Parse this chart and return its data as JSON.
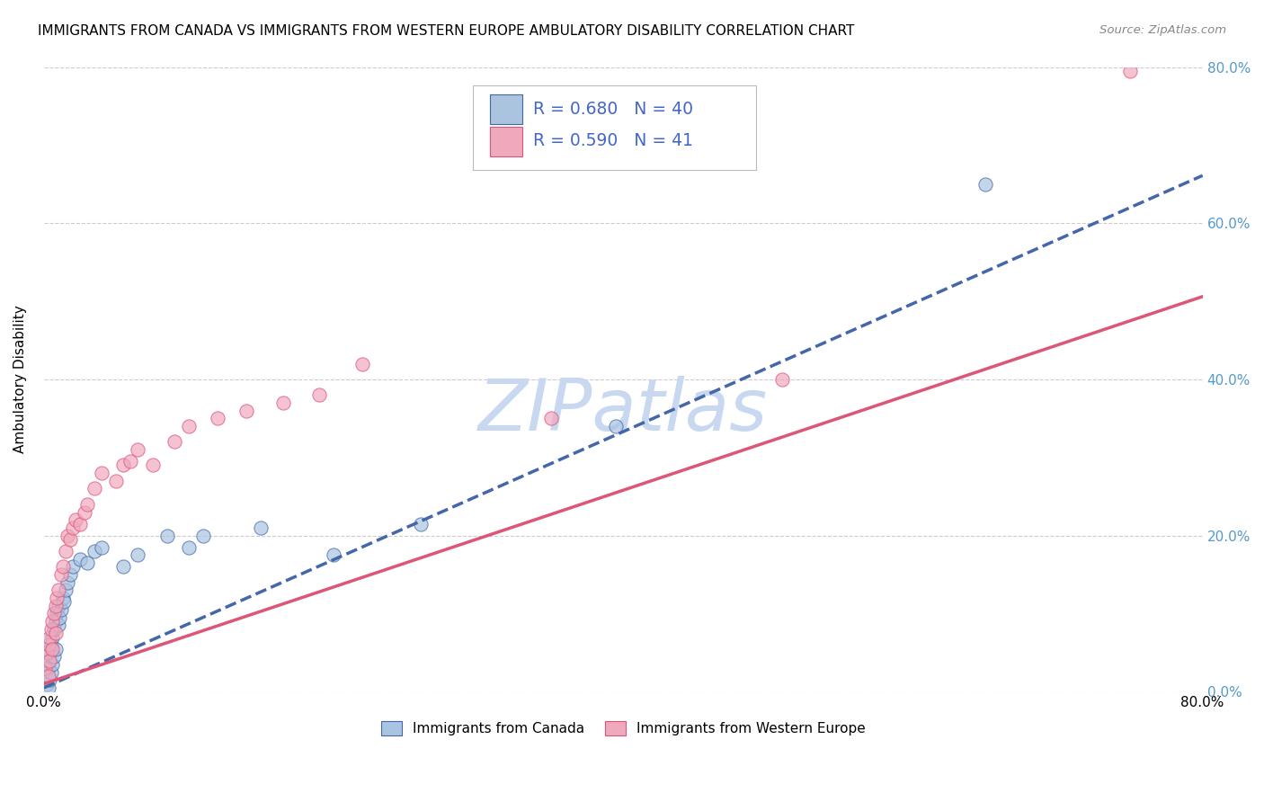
{
  "title": "IMMIGRANTS FROM CANADA VS IMMIGRANTS FROM WESTERN EUROPE AMBULATORY DISABILITY CORRELATION CHART",
  "source": "Source: ZipAtlas.com",
  "ylabel": "Ambulatory Disability",
  "color_canada": "#aac4e0",
  "color_europe": "#f0a8bc",
  "color_canada_line": "#4466aa",
  "color_europe_line": "#dd5577",
  "color_axis_right": "#5599cc",
  "color_legend_text": "#4466cc",
  "watermark": "ZIPatlas",
  "watermark_color": "#c8d8f0",
  "xlim": [
    0.0,
    0.8
  ],
  "ylim": [
    0.0,
    0.8
  ],
  "ytick_labels": [
    "0.0%",
    "20.0%",
    "40.0%",
    "60.0%",
    "80.0%"
  ],
  "ytick_values": [
    0.0,
    0.2,
    0.4,
    0.6,
    0.8
  ],
  "canada_slope": 0.82,
  "canada_intercept": 0.005,
  "europe_slope": 0.62,
  "europe_intercept": 0.01,
  "canada_x": [
    0.001,
    0.002,
    0.002,
    0.003,
    0.003,
    0.004,
    0.004,
    0.005,
    0.005,
    0.006,
    0.006,
    0.007,
    0.007,
    0.008,
    0.008,
    0.009,
    0.01,
    0.01,
    0.011,
    0.012,
    0.013,
    0.014,
    0.015,
    0.016,
    0.018,
    0.02,
    0.025,
    0.03,
    0.035,
    0.04,
    0.055,
    0.065,
    0.085,
    0.1,
    0.11,
    0.15,
    0.2,
    0.26,
    0.395,
    0.65
  ],
  "canada_y": [
    0.02,
    0.01,
    0.04,
    0.005,
    0.03,
    0.05,
    0.015,
    0.06,
    0.025,
    0.07,
    0.035,
    0.08,
    0.045,
    0.09,
    0.055,
    0.1,
    0.085,
    0.11,
    0.095,
    0.105,
    0.12,
    0.115,
    0.13,
    0.14,
    0.15,
    0.16,
    0.17,
    0.165,
    0.18,
    0.185,
    0.16,
    0.175,
    0.2,
    0.185,
    0.2,
    0.21,
    0.175,
    0.215,
    0.34,
    0.65
  ],
  "europe_x": [
    0.001,
    0.002,
    0.003,
    0.003,
    0.004,
    0.004,
    0.005,
    0.006,
    0.006,
    0.007,
    0.008,
    0.008,
    0.009,
    0.01,
    0.012,
    0.013,
    0.015,
    0.016,
    0.018,
    0.02,
    0.022,
    0.025,
    0.028,
    0.03,
    0.035,
    0.04,
    0.05,
    0.055,
    0.06,
    0.065,
    0.075,
    0.09,
    0.1,
    0.12,
    0.14,
    0.165,
    0.19,
    0.22,
    0.35,
    0.51,
    0.75
  ],
  "europe_y": [
    0.03,
    0.05,
    0.02,
    0.06,
    0.04,
    0.07,
    0.08,
    0.055,
    0.09,
    0.1,
    0.075,
    0.11,
    0.12,
    0.13,
    0.15,
    0.16,
    0.18,
    0.2,
    0.195,
    0.21,
    0.22,
    0.215,
    0.23,
    0.24,
    0.26,
    0.28,
    0.27,
    0.29,
    0.295,
    0.31,
    0.29,
    0.32,
    0.34,
    0.35,
    0.36,
    0.37,
    0.38,
    0.42,
    0.35,
    0.4,
    0.795
  ],
  "background_color": "#ffffff",
  "grid_color": "#cccccc",
  "legend_label_canada": "Immigrants from Canada",
  "legend_label_europe": "Immigrants from Western Europe"
}
